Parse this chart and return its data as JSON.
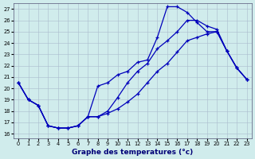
{
  "xlabel": "Graphe des temperatures (°c)",
  "bg_color": "#d0ecec",
  "grid_color": "#aabbcc",
  "line_color": "#0000bb",
  "xmin": -0.5,
  "xmax": 23.5,
  "ymin": 15.6,
  "ymax": 27.5,
  "xticks": [
    0,
    1,
    2,
    3,
    4,
    5,
    6,
    7,
    8,
    9,
    10,
    11,
    12,
    13,
    14,
    15,
    16,
    17,
    18,
    19,
    20,
    21,
    22,
    23
  ],
  "yticks": [
    16,
    17,
    18,
    19,
    20,
    21,
    22,
    23,
    24,
    25,
    26,
    27
  ],
  "line1_x": [
    0,
    1,
    2,
    3,
    4,
    5,
    6,
    7,
    8,
    9,
    10,
    11,
    12,
    13,
    14,
    15,
    16,
    17,
    18,
    19,
    20,
    21,
    22,
    23
  ],
  "line1_y": [
    20.5,
    19.0,
    18.5,
    16.7,
    16.5,
    16.5,
    16.7,
    17.5,
    20.2,
    20.5,
    21.2,
    21.5,
    22.3,
    22.5,
    24.5,
    27.2,
    27.2,
    26.7,
    25.8,
    25.0,
    25.0,
    23.3,
    21.8,
    20.8
  ],
  "line2_x": [
    0,
    1,
    2,
    3,
    4,
    5,
    6,
    7,
    8,
    9,
    10,
    11,
    12,
    13,
    14,
    15,
    16,
    17,
    18,
    19,
    20,
    21,
    22,
    23
  ],
  "line2_y": [
    20.5,
    19.0,
    18.5,
    16.7,
    16.5,
    16.5,
    16.7,
    17.5,
    17.5,
    18.0,
    19.2,
    20.5,
    21.5,
    22.2,
    23.5,
    24.2,
    25.0,
    26.0,
    26.0,
    25.5,
    25.2,
    23.3,
    21.8,
    20.8
  ],
  "line3_x": [
    0,
    1,
    2,
    3,
    4,
    5,
    6,
    7,
    8,
    9,
    10,
    11,
    12,
    13,
    14,
    15,
    16,
    17,
    18,
    19,
    20,
    21,
    22,
    23
  ],
  "line3_y": [
    20.5,
    19.0,
    18.5,
    16.7,
    16.5,
    16.5,
    16.7,
    17.5,
    17.5,
    17.8,
    18.2,
    18.8,
    19.5,
    20.5,
    21.5,
    22.2,
    23.2,
    24.2,
    24.5,
    24.8,
    25.0,
    23.3,
    21.8,
    20.8
  ]
}
